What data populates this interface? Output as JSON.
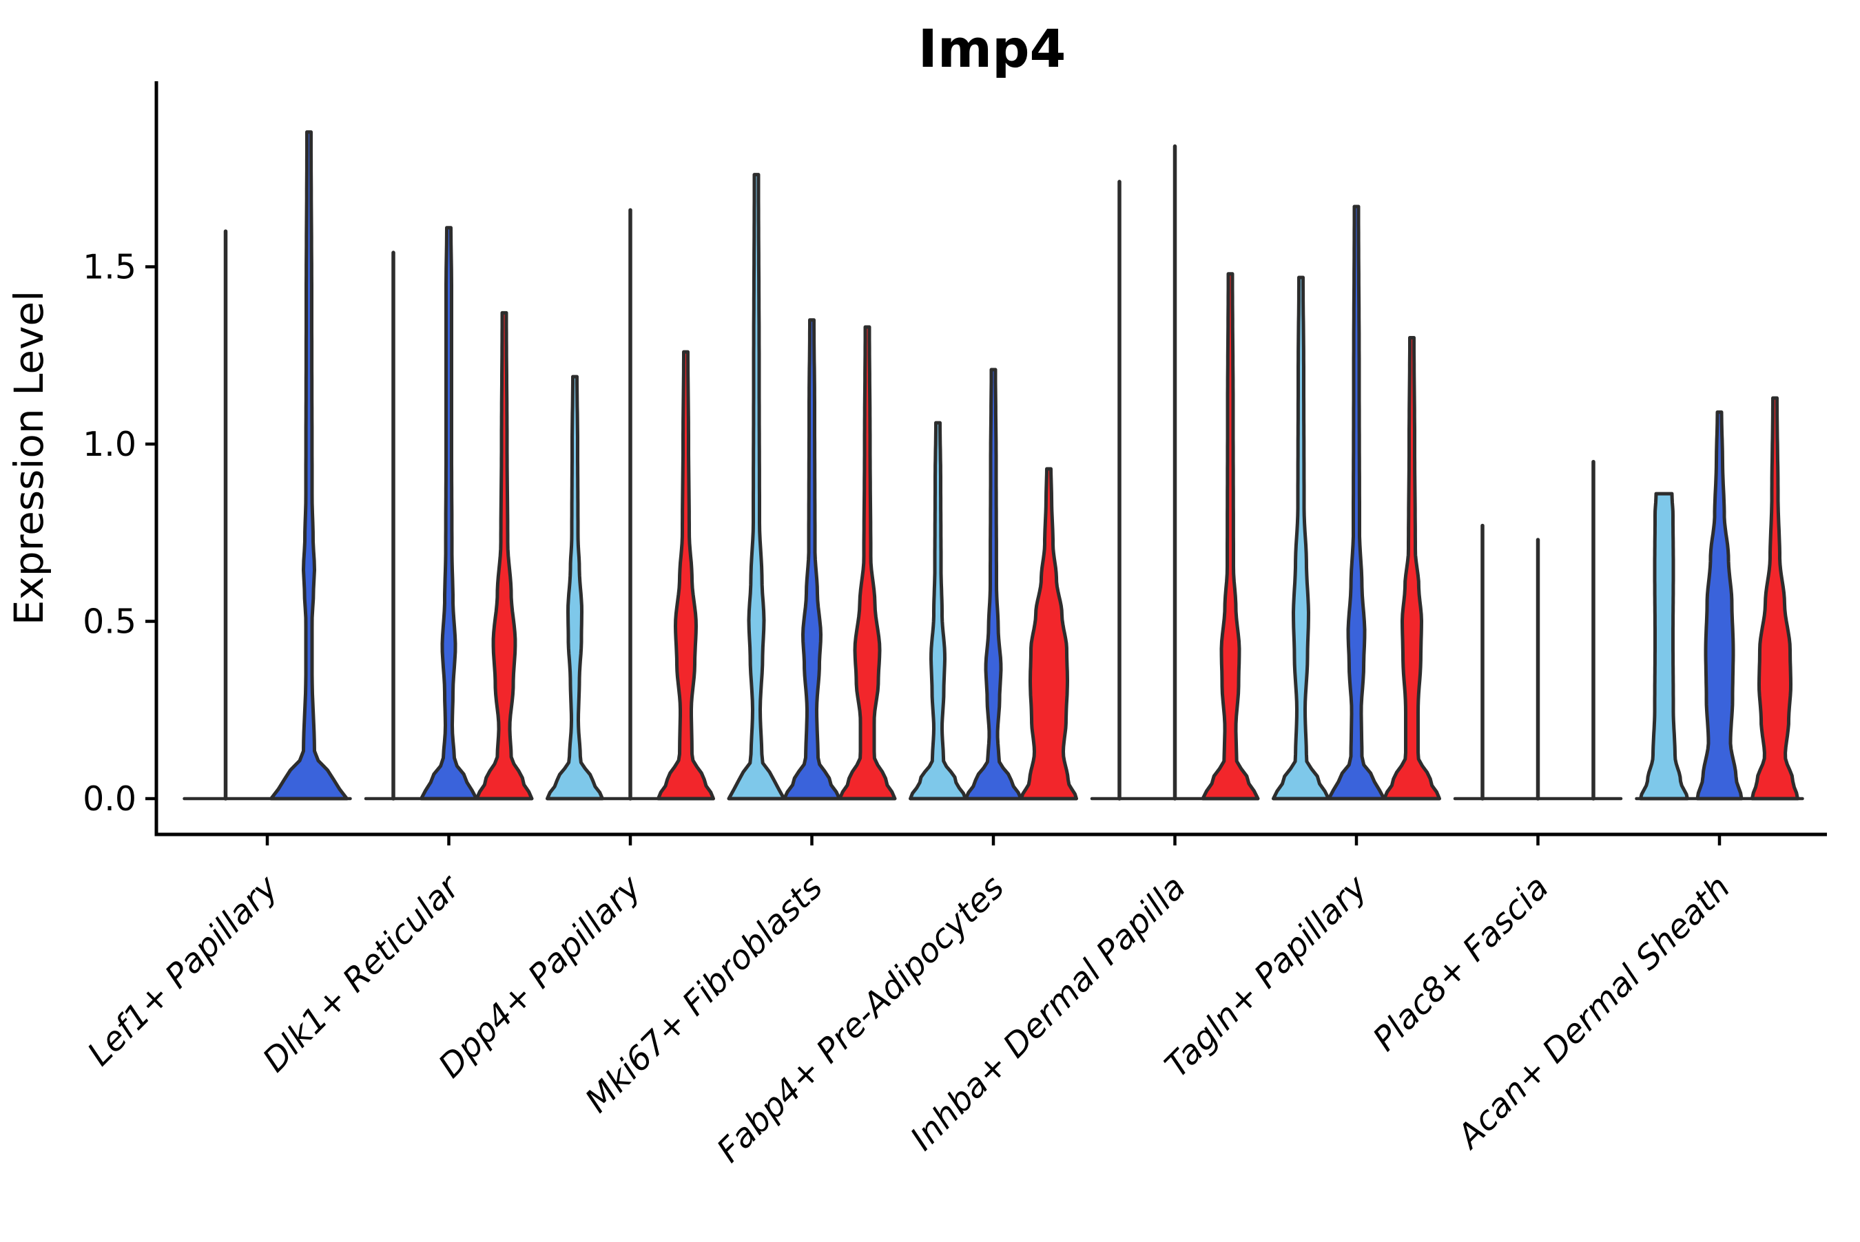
{
  "figure": {
    "title": "Imp4"
  },
  "chart_data": {
    "type": "violin",
    "title": "Imp4",
    "xlabel": "",
    "ylabel": "Expression Level",
    "yticks": [
      0.0,
      0.5,
      1.0,
      1.5
    ],
    "ytick_labels": [
      "0.0",
      "0.5",
      "1.0",
      "1.5"
    ],
    "ylim": [
      -0.1,
      2.02
    ],
    "grid": false,
    "legend_position": "none",
    "palette": {
      "lightblue": "#7EC8EA",
      "blue": "#3A63DB",
      "red": "#F2262B"
    },
    "outline_color": "#2d2d2d",
    "axis_color": "#000000",
    "categories": [
      "Lef1+ Papillary",
      "Dlk1+ Reticular",
      "Dpp4+ Papillary",
      "Mki67+ Fibroblasts",
      "Fabp4+ Pre-Adipocytes",
      "Inhba+ Dermal Papilla",
      "Tagln+ Papillary",
      "Plac8+ Fascia",
      "Acan+ Dermal Sheath"
    ],
    "groups": [
      {
        "label": "Lef1+ Papillary",
        "violins": [
          {
            "color": "lightblue",
            "kind": "spike",
            "max": 1.6
          },
          {
            "color": "blue",
            "kind": "body",
            "max": 1.88,
            "profile": [
              [
                0,
                55
              ],
              [
                0.05,
                36
              ],
              [
                0.13,
                8
              ],
              [
                0.35,
                4.5
              ],
              [
                0.5,
                4.5
              ],
              [
                0.58,
                6.5
              ],
              [
                0.65,
                8
              ],
              [
                0.73,
                6
              ],
              [
                0.85,
                4.5
              ],
              [
                1.4,
                4
              ],
              [
                1.88,
                3
              ]
            ]
          }
        ]
      },
      {
        "label": "Dlk1+ Reticular",
        "violins": [
          {
            "color": "lightblue",
            "kind": "spike",
            "max": 1.54
          },
          {
            "color": "blue",
            "kind": "body",
            "max": 1.61,
            "profile": [
              [
                0,
                40
              ],
              [
                0.05,
                26
              ],
              [
                0.11,
                8
              ],
              [
                0.2,
                5
              ],
              [
                0.3,
                6
              ],
              [
                0.43,
                9.5
              ],
              [
                0.56,
                6
              ],
              [
                0.7,
                4.5
              ],
              [
                1.0,
                4
              ],
              [
                1.45,
                4
              ],
              [
                1.61,
                3
              ]
            ]
          },
          {
            "color": "red",
            "kind": "body",
            "max": 1.37,
            "profile": [
              [
                0,
                40
              ],
              [
                0.05,
                27
              ],
              [
                0.12,
                10
              ],
              [
                0.2,
                8
              ],
              [
                0.32,
                13
              ],
              [
                0.44,
                16
              ],
              [
                0.58,
                10
              ],
              [
                0.72,
                5
              ],
              [
                1.0,
                4
              ],
              [
                1.37,
                3
              ]
            ]
          }
        ]
      },
      {
        "label": "Dpp4+ Papillary",
        "violins": [
          {
            "color": "lightblue",
            "kind": "body",
            "max": 1.19,
            "profile": [
              [
                0,
                40
              ],
              [
                0.05,
                26
              ],
              [
                0.11,
                8
              ],
              [
                0.22,
                5
              ],
              [
                0.33,
                6.5
              ],
              [
                0.45,
                9.5
              ],
              [
                0.53,
                10
              ],
              [
                0.65,
                6.5
              ],
              [
                0.74,
                4.5
              ],
              [
                1.0,
                4
              ],
              [
                1.19,
                3
              ]
            ]
          },
          {
            "color": "blue",
            "kind": "spike",
            "max": 1.66
          },
          {
            "color": "red",
            "kind": "body",
            "max": 1.26,
            "profile": [
              [
                0,
                40
              ],
              [
                0.05,
                27
              ],
              [
                0.12,
                9
              ],
              [
                0.25,
                8
              ],
              [
                0.38,
                13
              ],
              [
                0.49,
                15
              ],
              [
                0.62,
                9
              ],
              [
                0.75,
                5
              ],
              [
                1.0,
                4
              ],
              [
                1.26,
                3
              ]
            ]
          }
        ]
      },
      {
        "label": "Mki67+ Fibroblasts",
        "violins": [
          {
            "color": "lightblue",
            "kind": "body",
            "max": 1.76,
            "profile": [
              [
                0,
                40
              ],
              [
                0.05,
                26
              ],
              [
                0.11,
                8
              ],
              [
                0.25,
                5.5
              ],
              [
                0.4,
                9
              ],
              [
                0.5,
                11
              ],
              [
                0.62,
                8
              ],
              [
                0.78,
                4.5
              ],
              [
                1.2,
                4
              ],
              [
                1.76,
                3
              ]
            ]
          },
          {
            "color": "blue",
            "kind": "body",
            "max": 1.35,
            "profile": [
              [
                0,
                40
              ],
              [
                0.05,
                26
              ],
              [
                0.11,
                9
              ],
              [
                0.25,
                7
              ],
              [
                0.38,
                11
              ],
              [
                0.46,
                13
              ],
              [
                0.58,
                8
              ],
              [
                0.7,
                4.5
              ],
              [
                1.1,
                4
              ],
              [
                1.35,
                3
              ]
            ]
          },
          {
            "color": "red",
            "kind": "body",
            "max": 1.33,
            "profile": [
              [
                0,
                40
              ],
              [
                0.05,
                27
              ],
              [
                0.12,
                10
              ],
              [
                0.22,
                10
              ],
              [
                0.33,
                16
              ],
              [
                0.42,
                18
              ],
              [
                0.55,
                11
              ],
              [
                0.68,
                5
              ],
              [
                1.0,
                4
              ],
              [
                1.33,
                3
              ]
            ]
          }
        ]
      },
      {
        "label": "Fabp4+ Pre-Adipocytes",
        "violins": [
          {
            "color": "lightblue",
            "kind": "body",
            "max": 1.06,
            "profile": [
              [
                0,
                40
              ],
              [
                0.05,
                26
              ],
              [
                0.11,
                8
              ],
              [
                0.2,
                6
              ],
              [
                0.3,
                8.5
              ],
              [
                0.4,
                10
              ],
              [
                0.52,
                6
              ],
              [
                0.65,
                4.5
              ],
              [
                0.9,
                4
              ],
              [
                1.06,
                3
              ]
            ]
          },
          {
            "color": "blue",
            "kind": "body",
            "max": 1.21,
            "profile": [
              [
                0,
                40
              ],
              [
                0.05,
                26
              ],
              [
                0.11,
                8
              ],
              [
                0.18,
                6
              ],
              [
                0.28,
                9
              ],
              [
                0.37,
                11
              ],
              [
                0.48,
                7
              ],
              [
                0.6,
                4.5
              ],
              [
                0.95,
                4
              ],
              [
                1.21,
                3
              ]
            ]
          },
          {
            "color": "red",
            "kind": "body",
            "max": 0.93,
            "profile": [
              [
                0,
                40
              ],
              [
                0.05,
                28
              ],
              [
                0.13,
                21
              ],
              [
                0.22,
                25
              ],
              [
                0.33,
                27
              ],
              [
                0.42,
                26
              ],
              [
                0.52,
                19
              ],
              [
                0.62,
                11
              ],
              [
                0.72,
                6
              ],
              [
                0.85,
                4
              ],
              [
                0.93,
                3
              ]
            ]
          }
        ]
      },
      {
        "label": "Inhba+ Dermal Papilla",
        "violins": [
          {
            "color": "lightblue",
            "kind": "spike",
            "max": 1.74
          },
          {
            "color": "blue",
            "kind": "spike",
            "max": 1.84
          },
          {
            "color": "red",
            "kind": "body",
            "max": 1.48,
            "profile": [
              [
                0,
                40
              ],
              [
                0.05,
                26
              ],
              [
                0.11,
                9
              ],
              [
                0.2,
                8
              ],
              [
                0.32,
                12
              ],
              [
                0.42,
                13
              ],
              [
                0.54,
                8
              ],
              [
                0.65,
                4.5
              ],
              [
                1.1,
                4
              ],
              [
                1.48,
                3
              ]
            ]
          }
        ]
      },
      {
        "label": "Tagln+ Papillary",
        "violins": [
          {
            "color": "lightblue",
            "kind": "body",
            "max": 1.47,
            "profile": [
              [
                0,
                40
              ],
              [
                0.05,
                26
              ],
              [
                0.11,
                8
              ],
              [
                0.25,
                6
              ],
              [
                0.4,
                9.5
              ],
              [
                0.52,
                11
              ],
              [
                0.66,
                8
              ],
              [
                0.82,
                4.5
              ],
              [
                1.2,
                4
              ],
              [
                1.47,
                3
              ]
            ]
          },
          {
            "color": "blue",
            "kind": "body",
            "max": 1.67,
            "profile": [
              [
                0,
                40
              ],
              [
                0.05,
                26
              ],
              [
                0.11,
                8
              ],
              [
                0.25,
                7
              ],
              [
                0.37,
                10.5
              ],
              [
                0.47,
                12
              ],
              [
                0.6,
                8
              ],
              [
                0.75,
                4.5
              ],
              [
                1.2,
                4
              ],
              [
                1.67,
                3
              ]
            ]
          },
          {
            "color": "red",
            "kind": "body",
            "max": 1.3,
            "profile": [
              [
                0,
                40
              ],
              [
                0.05,
                27
              ],
              [
                0.12,
                9
              ],
              [
                0.25,
                9
              ],
              [
                0.4,
                13
              ],
              [
                0.5,
                14
              ],
              [
                0.6,
                10
              ],
              [
                0.7,
                5
              ],
              [
                1.0,
                4
              ],
              [
                1.3,
                3
              ]
            ]
          }
        ]
      },
      {
        "label": "Plac8+ Fascia",
        "violins": [
          {
            "color": "lightblue",
            "kind": "spike",
            "max": 0.77
          },
          {
            "color": "blue",
            "kind": "spike",
            "max": 0.73
          },
          {
            "color": "red",
            "kind": "spike",
            "max": 0.95
          }
        ]
      },
      {
        "label": "Acan+ Dermal Sheath",
        "violins": [
          {
            "color": "lightblue",
            "kind": "body",
            "max": 0.86,
            "flat_top": true,
            "profile": [
              [
                0,
                34
              ],
              [
                0.05,
                24
              ],
              [
                0.12,
                16
              ],
              [
                0.25,
                13.5
              ],
              [
                0.45,
                13
              ],
              [
                0.65,
                13.5
              ],
              [
                0.8,
                13
              ],
              [
                0.86,
                11.5
              ]
            ]
          },
          {
            "color": "blue",
            "kind": "body",
            "max": 1.09,
            "profile": [
              [
                0,
                32
              ],
              [
                0.06,
                24
              ],
              [
                0.16,
                16
              ],
              [
                0.28,
                19
              ],
              [
                0.42,
                20
              ],
              [
                0.55,
                18
              ],
              [
                0.68,
                13
              ],
              [
                0.8,
                7
              ],
              [
                0.95,
                4.5
              ],
              [
                1.09,
                3
              ]
            ]
          },
          {
            "color": "red",
            "kind": "body",
            "max": 1.13,
            "profile": [
              [
                0,
                33
              ],
              [
                0.05,
                26
              ],
              [
                0.12,
                15
              ],
              [
                0.22,
                20
              ],
              [
                0.32,
                23
              ],
              [
                0.42,
                22
              ],
              [
                0.55,
                14
              ],
              [
                0.68,
                7
              ],
              [
                0.85,
                4.5
              ],
              [
                1.13,
                3
              ]
            ]
          }
        ]
      }
    ]
  }
}
